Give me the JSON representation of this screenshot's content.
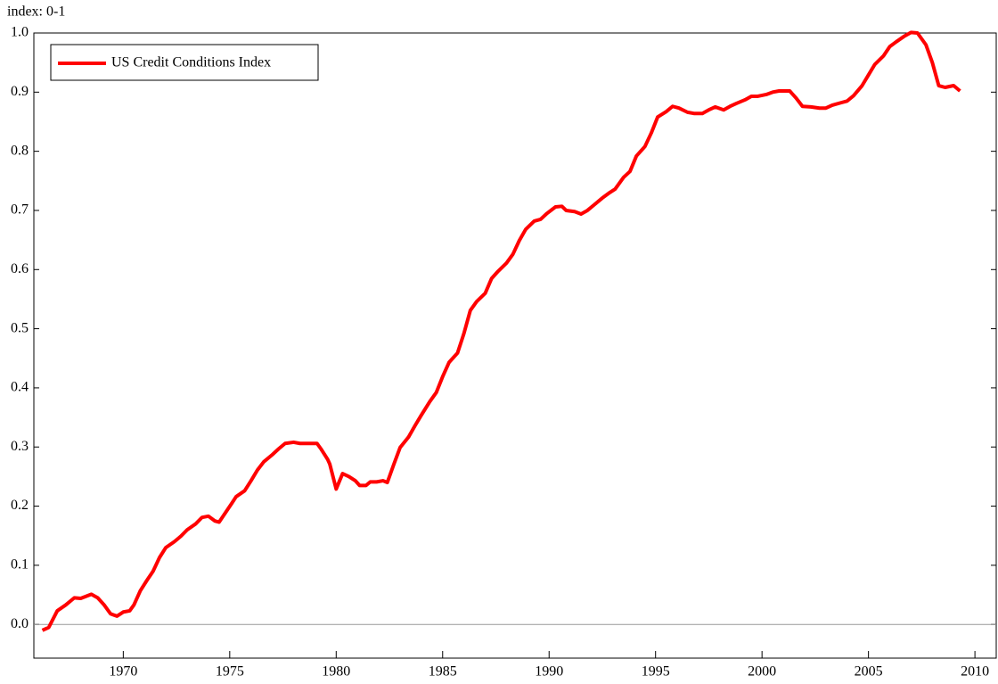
{
  "chart_data": {
    "type": "line",
    "y_label": "index: 0-1",
    "xlim": [
      1965.8,
      2011.0
    ],
    "ylim": [
      -0.057,
      1.0
    ],
    "xticks": [
      1970,
      1975,
      1980,
      1985,
      1990,
      1995,
      2000,
      2005,
      2010
    ],
    "yticks": [
      {
        "value": 0,
        "label": "0.0"
      },
      0.1,
      0.2,
      0.3,
      0.4,
      0.5,
      0.6,
      0.7,
      0.8,
      0.9,
      {
        "value": 1,
        "label": "1.0"
      }
    ],
    "zero_line": true,
    "legend": "top-left",
    "series": [
      {
        "name": "US Credit Conditions Index",
        "color": "#ff0000",
        "x": [
          1966.2,
          1966.5,
          1966.9,
          1967.3,
          1967.7,
          1968.0,
          1968.5,
          1968.8,
          1969.1,
          1969.4,
          1969.7,
          1970.0,
          1970.3,
          1970.5,
          1970.8,
          1971.1,
          1971.4,
          1971.7,
          1972.0,
          1972.4,
          1972.7,
          1973.0,
          1973.4,
          1973.7,
          1974.0,
          1974.3,
          1974.5,
          1974.8,
          1975.1,
          1975.3,
          1975.7,
          1976.0,
          1976.3,
          1976.6,
          1977.0,
          1977.3,
          1977.6,
          1978.0,
          1978.3,
          1978.6,
          1979.1,
          1979.3,
          1979.6,
          1979.7,
          1980.0,
          1980.3,
          1980.6,
          1980.9,
          1981.1,
          1981.4,
          1981.6,
          1981.9,
          1982.2,
          1982.4,
          1982.7,
          1983.0,
          1983.4,
          1983.7,
          1984.0,
          1984.4,
          1984.7,
          1985.0,
          1985.3,
          1985.7,
          1986.0,
          1986.3,
          1986.6,
          1987.0,
          1987.3,
          1987.6,
          1988.0,
          1988.3,
          1988.6,
          1988.9,
          1989.3,
          1989.6,
          1989.9,
          1990.3,
          1990.6,
          1990.8,
          1991.2,
          1991.5,
          1991.8,
          1992.1,
          1992.5,
          1992.8,
          1993.1,
          1993.5,
          1993.8,
          1994.1,
          1994.5,
          1994.8,
          1995.1,
          1995.5,
          1995.8,
          1996.1,
          1996.5,
          1996.8,
          1997.2,
          1997.5,
          1997.8,
          1998.2,
          1998.5,
          1998.8,
          1999.2,
          1999.5,
          1999.8,
          2000.2,
          2000.5,
          2000.8,
          2001.3,
          2001.6,
          2001.9,
          2002.3,
          2002.7,
          2003.0,
          2003.3,
          2003.7,
          2004.0,
          2004.3,
          2004.7,
          2005.0,
          2005.3,
          2005.7,
          2006.0,
          2006.3,
          2006.7,
          2007.0,
          2007.3,
          2007.7,
          2008.0,
          2008.3,
          2008.6,
          2009.0,
          2009.3
        ],
        "values": [
          -0.01,
          -0.005,
          0.023,
          0.033,
          0.045,
          0.044,
          0.051,
          0.045,
          0.033,
          0.018,
          0.014,
          0.021,
          0.023,
          0.033,
          0.057,
          0.074,
          0.09,
          0.113,
          0.13,
          0.14,
          0.149,
          0.16,
          0.17,
          0.181,
          0.183,
          0.175,
          0.173,
          0.189,
          0.205,
          0.216,
          0.226,
          0.243,
          0.261,
          0.275,
          0.287,
          0.297,
          0.306,
          0.308,
          0.306,
          0.306,
          0.306,
          0.296,
          0.279,
          0.271,
          0.229,
          0.255,
          0.25,
          0.243,
          0.235,
          0.235,
          0.241,
          0.241,
          0.243,
          0.24,
          0.27,
          0.299,
          0.317,
          0.336,
          0.354,
          0.377,
          0.392,
          0.419,
          0.443,
          0.459,
          0.492,
          0.531,
          0.546,
          0.56,
          0.585,
          0.597,
          0.611,
          0.626,
          0.649,
          0.668,
          0.682,
          0.685,
          0.695,
          0.706,
          0.707,
          0.7,
          0.698,
          0.694,
          0.7,
          0.709,
          0.721,
          0.729,
          0.736,
          0.756,
          0.766,
          0.792,
          0.808,
          0.831,
          0.858,
          0.867,
          0.876,
          0.873,
          0.866,
          0.864,
          0.864,
          0.87,
          0.875,
          0.87,
          0.876,
          0.881,
          0.887,
          0.893,
          0.893,
          0.896,
          0.9,
          0.902,
          0.902,
          0.89,
          0.876,
          0.875,
          0.873,
          0.873,
          0.878,
          0.882,
          0.885,
          0.894,
          0.911,
          0.929,
          0.947,
          0.961,
          0.977,
          0.985,
          0.995,
          1.001,
          1.0,
          0.98,
          0.95,
          0.911,
          0.908,
          0.911,
          0.902
        ]
      }
    ]
  }
}
